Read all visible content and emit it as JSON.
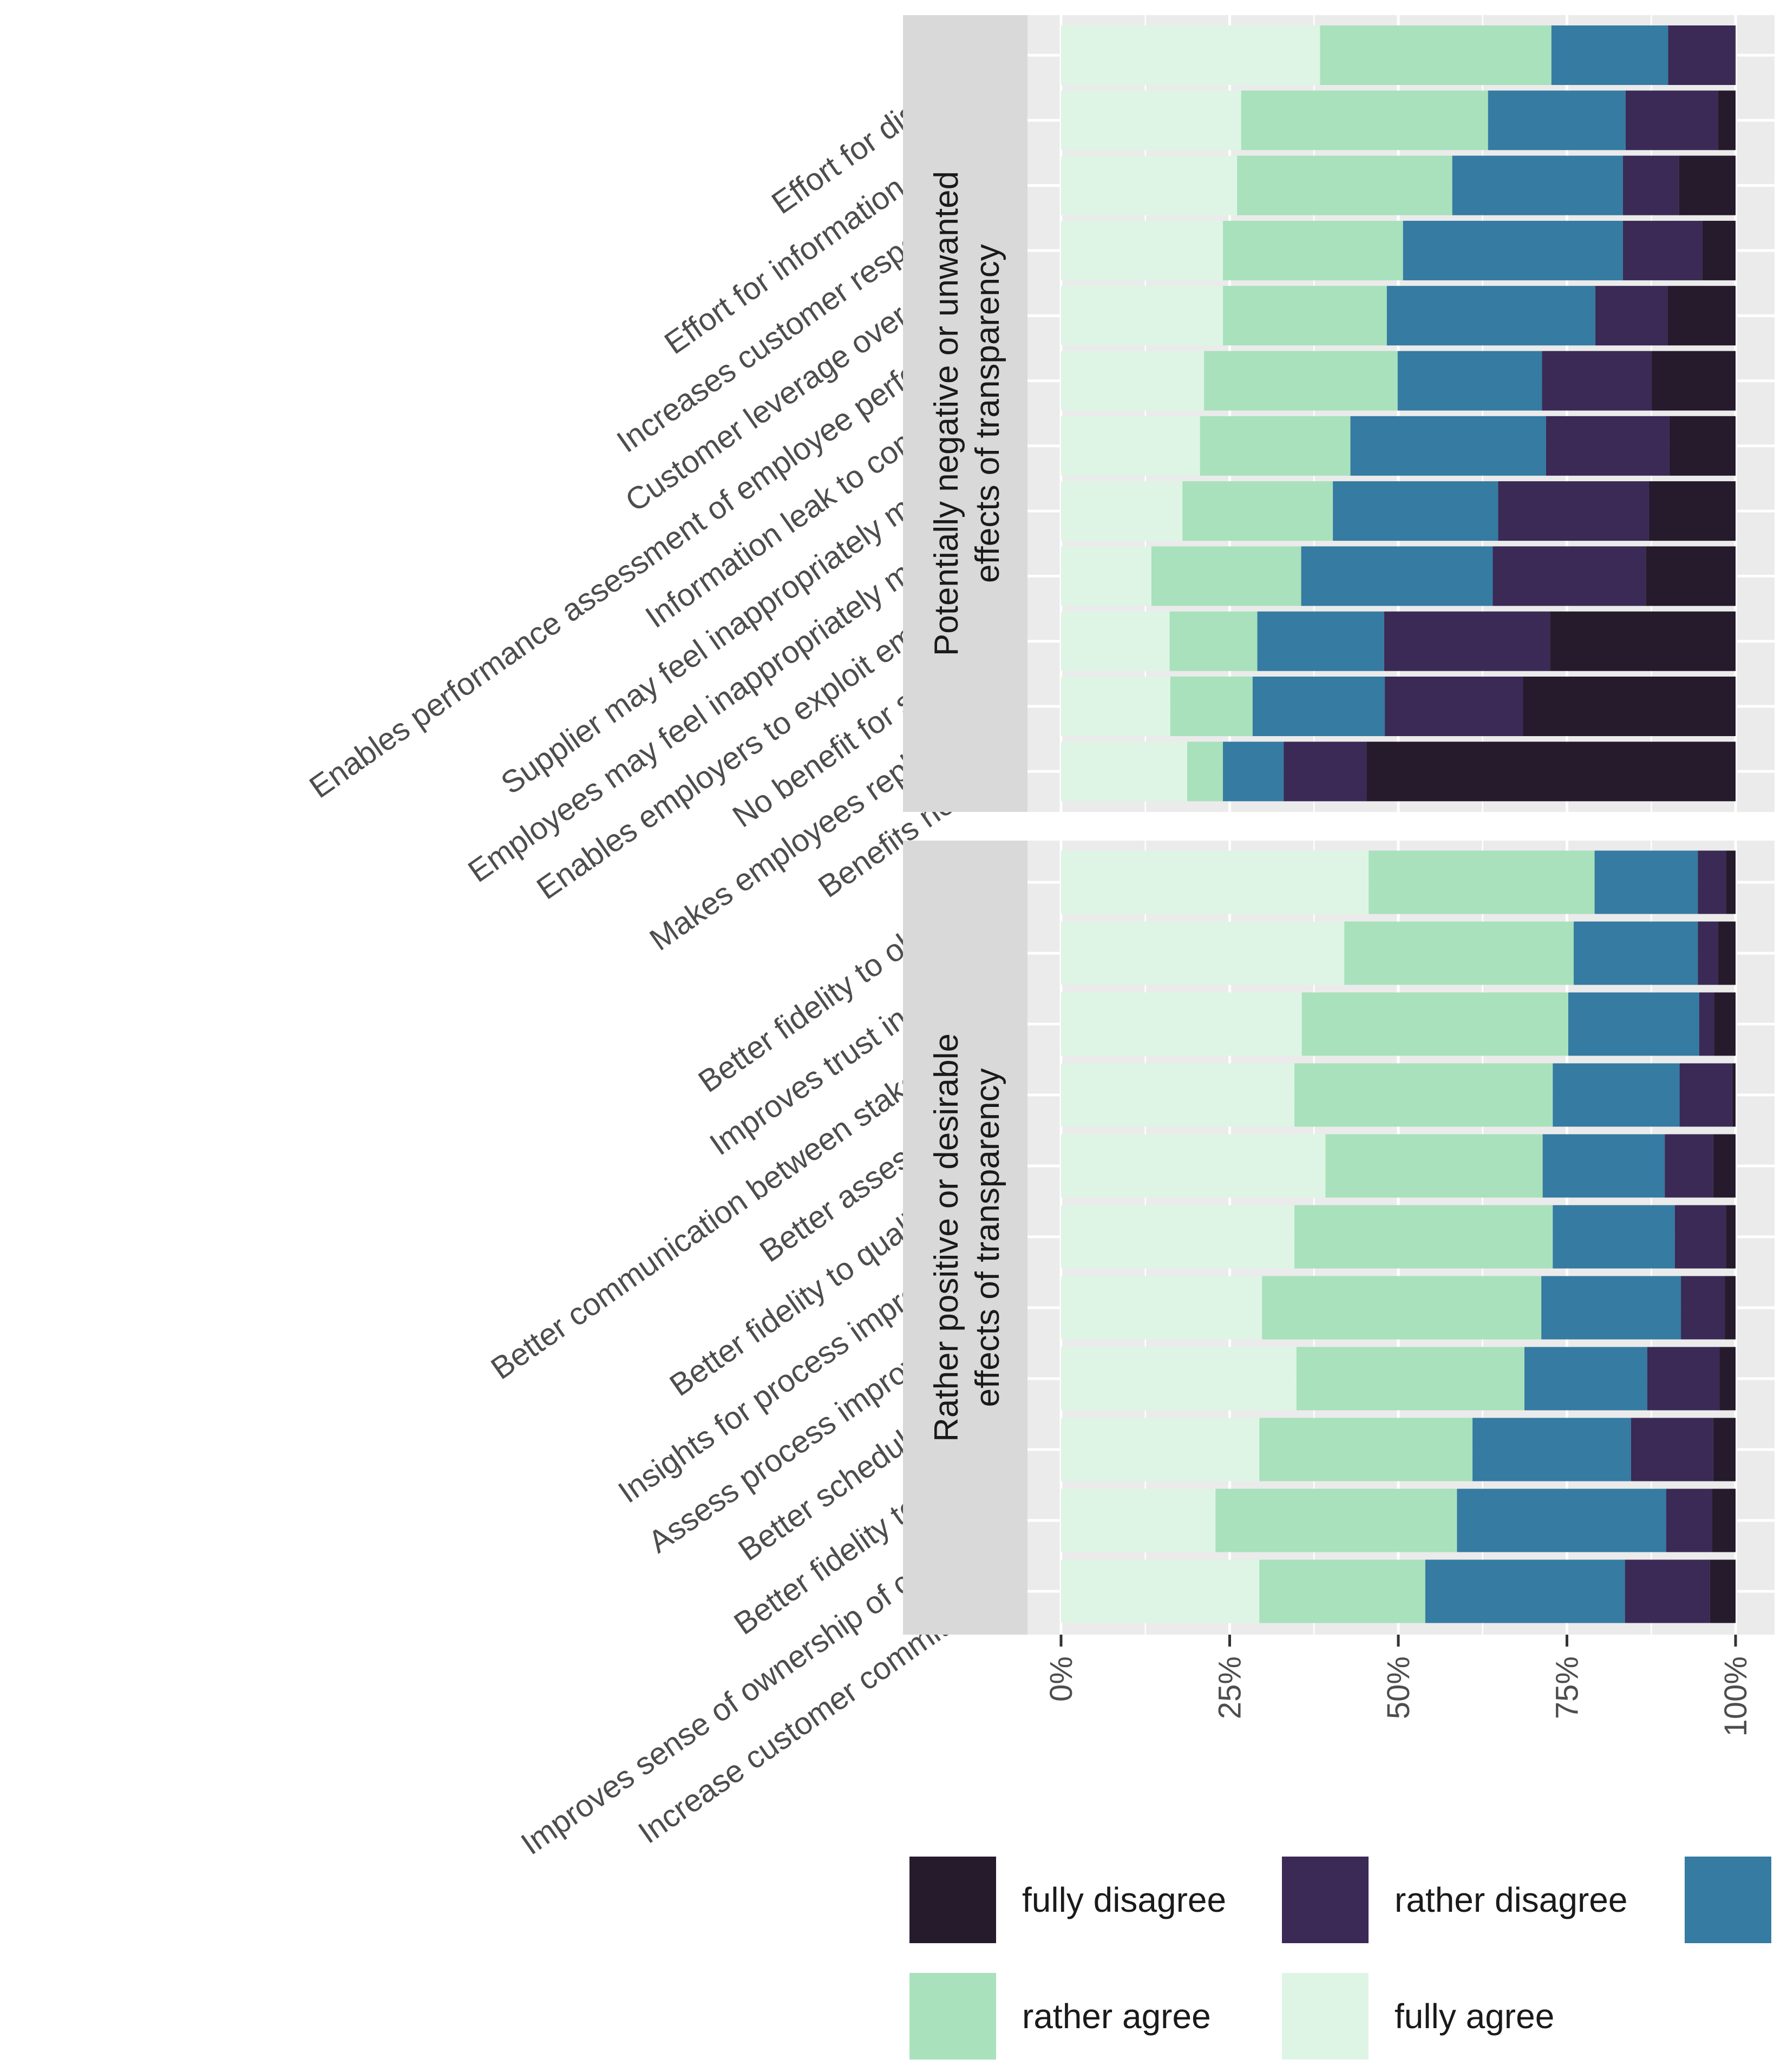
{
  "chart_data": {
    "type": "bar",
    "orientation": "horizontal",
    "stacked": true,
    "normalized": true,
    "x_tick_labels": [
      "0%",
      "25%",
      "50%",
      "75%",
      "100%"
    ],
    "x_ticks": [
      0,
      25,
      50,
      75,
      100
    ],
    "xlim": [
      0,
      100
    ],
    "grid": true,
    "legend_position": "bottom",
    "legend": [
      {
        "key": "fully_disagree",
        "label": "fully disagree",
        "color": "#261A2D"
      },
      {
        "key": "rather_disagree",
        "label": "rather disagree",
        "color": "#3A2A55"
      },
      {
        "key": "neutral",
        "label": "",
        "color": "#357BA2"
      },
      {
        "key": "rather_agree",
        "label": "rather agree",
        "color": "#A8E1BC"
      },
      {
        "key": "fully_agree",
        "label": "fully agree",
        "color": "#DEF5E5"
      }
    ],
    "stack_order": [
      "fully_agree",
      "rather_agree",
      "neutral",
      "rather_disagree",
      "fully_disagree"
    ],
    "panels": [
      {
        "title_lines": [
          "Potentially negative or unwanted",
          "effects of transparency"
        ],
        "categories": [
          "Effort for discussing",
          "Effort for information provider",
          "Increases customer responsibility",
          "Customer leverage over supplier",
          "Enables performance assessment of employee performance",
          "Information leak to competitors",
          "Supplier may feel inappropriately monitored",
          "Employees may feel inappropriately monitored",
          "Enables employers to exploit employees",
          "No benefit for suppliers",
          "Makes employees replaceable",
          "Benefits no one"
        ],
        "series": {
          "fully_agree": [
            38.4,
            26.7,
            26.1,
            24.0,
            24.0,
            21.2,
            20.6,
            18.0,
            13.4,
            16.1,
            16.2,
            18.7
          ],
          "rather_agree": [
            34.3,
            36.6,
            31.9,
            26.7,
            24.3,
            28.7,
            22.3,
            22.3,
            22.2,
            13.0,
            12.2,
            5.3
          ],
          "neutral": [
            17.3,
            20.4,
            25.3,
            32.6,
            30.9,
            21.4,
            29.0,
            24.5,
            28.4,
            18.8,
            19.6,
            9.0
          ],
          "rather_disagree": [
            9.9,
            13.7,
            8.3,
            11.8,
            10.7,
            16.3,
            18.3,
            22.4,
            22.7,
            24.6,
            20.5,
            12.3
          ],
          "fully_disagree": [
            0.1,
            2.6,
            8.4,
            4.9,
            10.1,
            12.4,
            9.8,
            12.8,
            13.3,
            27.5,
            31.5,
            54.7
          ]
        }
      },
      {
        "title_lines": [
          "Rather positive or desirable",
          "effects of transparency"
        ],
        "categories": [
          "Better fidelity to objectives",
          "Improves trust in supplier",
          "Better communication between stakeholders",
          "Better assess quality",
          "Better fidelity to quality goals",
          "Insights for process improvement",
          "Assess process improvements",
          "Better schedule fidelity",
          "Better fidelity to budget",
          "Improves sense of ownership of customer",
          "Increase customer commitment"
        ],
        "series": {
          "fully_agree": [
            45.6,
            42.0,
            35.7,
            34.6,
            39.2,
            34.6,
            29.8,
            34.9,
            29.4,
            22.9,
            29.4
          ],
          "rather_agree": [
            33.5,
            34.0,
            39.5,
            38.3,
            32.2,
            38.3,
            41.4,
            33.8,
            31.6,
            35.8,
            24.6
          ],
          "neutral": [
            15.3,
            18.4,
            19.4,
            18.8,
            18.1,
            18.1,
            20.7,
            18.2,
            23.5,
            31.0,
            29.6
          ],
          "rather_disagree": [
            4.2,
            3.0,
            2.2,
            7.8,
            7.2,
            7.6,
            6.5,
            10.7,
            12.2,
            6.8,
            12.6
          ],
          "fully_disagree": [
            1.4,
            2.6,
            3.2,
            0.5,
            3.3,
            1.4,
            1.6,
            2.4,
            3.3,
            3.5,
            3.8
          ]
        }
      }
    ]
  }
}
